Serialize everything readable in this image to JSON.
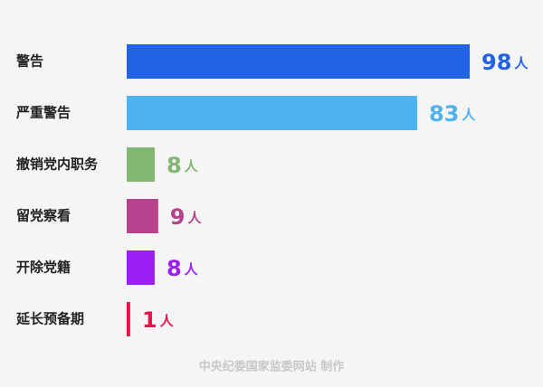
{
  "chart_data": {
    "type": "bar",
    "orientation": "horizontal",
    "categories": [
      "警告",
      "严重警告",
      "撤销党内职务",
      "留党察看",
      "开除党籍",
      "延长预备期"
    ],
    "values": [
      98,
      83,
      8,
      9,
      8,
      1
    ],
    "value_labels": [
      "98人",
      "83人",
      "8人",
      "9人",
      "8人",
      "1人"
    ],
    "colors": [
      "#2262e3",
      "#4eb3ef",
      "#82b772",
      "#b6418d",
      "#9b1ff5",
      "#e8124b"
    ],
    "source": "中央纪委国家监委网站 制作"
  }
}
